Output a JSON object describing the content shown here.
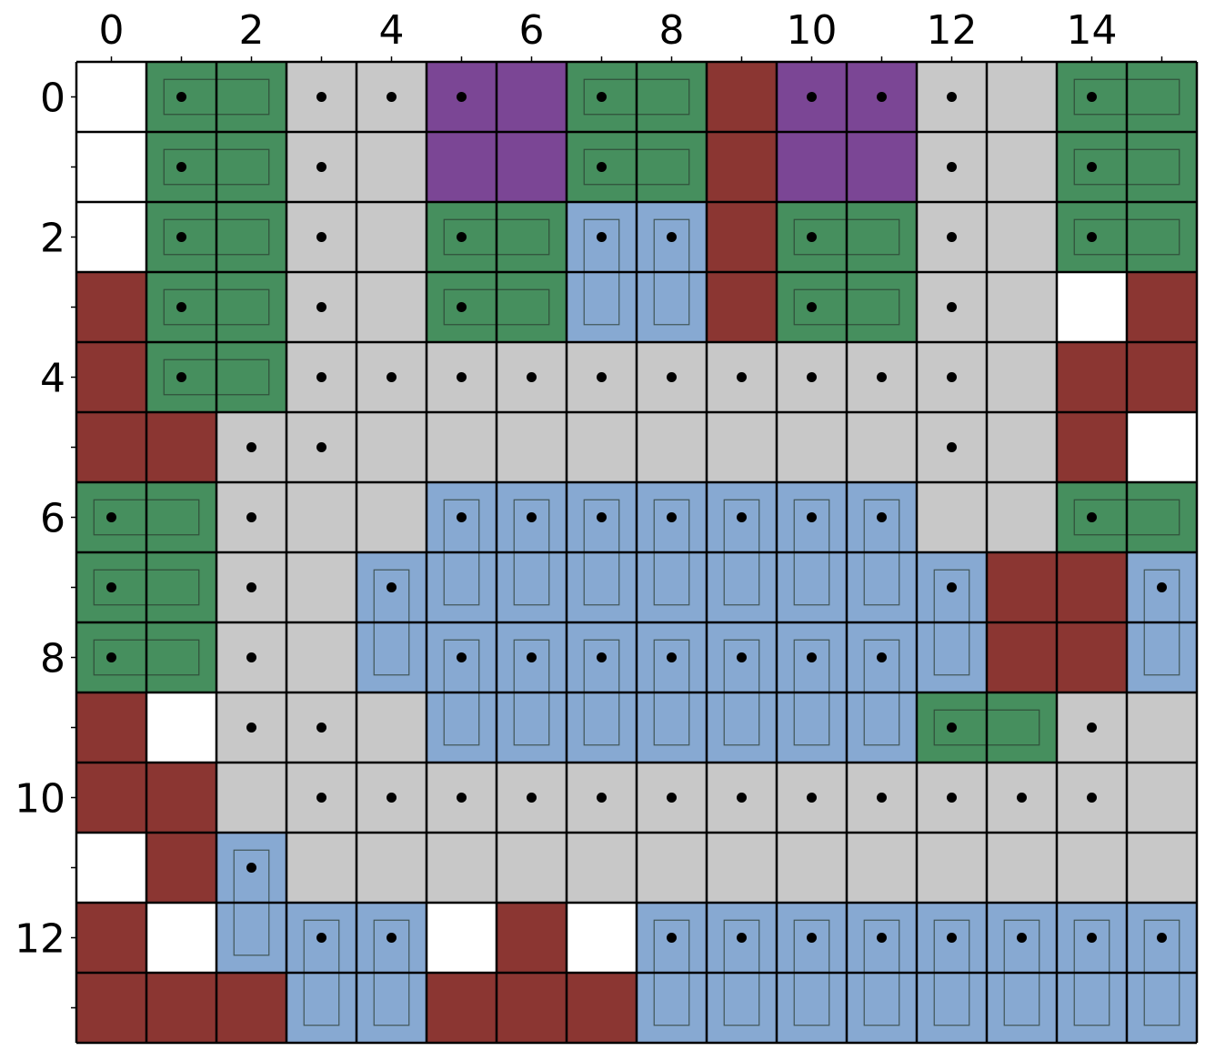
{
  "colors": {
    "empty": "#ffffff",
    "floor": "#c8c8c8",
    "wall": "#8b3632",
    "horizontal_piece": "#468f5e",
    "vertical_piece": "#87a9d2",
    "block": "#7b4695",
    "grid_line": "#000000",
    "piece_outline": "#2a3a2f",
    "dot": "#000000"
  },
  "x_ticks": [
    "0",
    "2",
    "4",
    "6",
    "8",
    "10",
    "12",
    "14"
  ],
  "y_ticks": [
    "0",
    "2",
    "4",
    "6",
    "8",
    "10",
    "12"
  ],
  "grid": {
    "cols": 16,
    "rows": 14,
    "legend": {
      "E": "empty",
      "F": "floor",
      "W": "wall",
      "H": "horizontal_piece",
      "V": "vertical_piece",
      "P": "block"
    },
    "cells": [
      "EHHFFPPHHWPPFFHH",
      "EHHFFPPHHWPPFFHH",
      "EHHFFHHVVWHHFFHH",
      "WHHFFHHVVWHHFFEW",
      "WHHFFFFFFFFFFFWW",
      "WWFFFFFFFFFFFFWE",
      "HHFFFVVVVVVVFFHH",
      "HHFFVVVVVVVVVWWV",
      "HHFFVVVVVVVVVWWV",
      "WEFFFVVVVVVVHHFF",
      "WWFFFFFFFFFFFFFF",
      "EWVFFFFFFFFFFFFF",
      "WEVVVEWEVVVVVVVV",
      "WWWVVWWWVVVVVVVV"
    ],
    "horizontal_pieces": [
      [
        0,
        1
      ],
      [
        1,
        1
      ],
      [
        2,
        1
      ],
      [
        3,
        1
      ],
      [
        4,
        1
      ],
      [
        0,
        7
      ],
      [
        1,
        7
      ],
      [
        0,
        14
      ],
      [
        1,
        14
      ],
      [
        2,
        14
      ],
      [
        6,
        14
      ],
      [
        2,
        5
      ],
      [
        3,
        5
      ],
      [
        2,
        10
      ],
      [
        3,
        10
      ],
      [
        6,
        0
      ],
      [
        7,
        0
      ],
      [
        8,
        0
      ],
      [
        9,
        12
      ]
    ],
    "vertical_pieces": [
      [
        2,
        7
      ],
      [
        2,
        8
      ],
      [
        6,
        5
      ],
      [
        6,
        6
      ],
      [
        6,
        7
      ],
      [
        6,
        8
      ],
      [
        6,
        9
      ],
      [
        6,
        10
      ],
      [
        6,
        11
      ],
      [
        8,
        5
      ],
      [
        8,
        6
      ],
      [
        8,
        7
      ],
      [
        8,
        8
      ],
      [
        8,
        9
      ],
      [
        8,
        10
      ],
      [
        8,
        11
      ],
      [
        7,
        4
      ],
      [
        7,
        12
      ],
      [
        7,
        15
      ],
      [
        11,
        2
      ],
      [
        12,
        3
      ],
      [
        12,
        4
      ],
      [
        12,
        8
      ],
      [
        12,
        9
      ],
      [
        12,
        10
      ],
      [
        12,
        11
      ],
      [
        12,
        12
      ],
      [
        12,
        13
      ],
      [
        12,
        14
      ],
      [
        12,
        15
      ]
    ],
    "dots": [
      [
        0,
        1
      ],
      [
        0,
        3
      ],
      [
        0,
        4
      ],
      [
        0,
        5
      ],
      [
        0,
        7
      ],
      [
        0,
        10
      ],
      [
        0,
        11
      ],
      [
        0,
        12
      ],
      [
        0,
        14
      ],
      [
        1,
        1
      ],
      [
        1,
        3
      ],
      [
        1,
        7
      ],
      [
        1,
        12
      ],
      [
        1,
        14
      ],
      [
        2,
        1
      ],
      [
        2,
        3
      ],
      [
        2,
        5
      ],
      [
        2,
        7
      ],
      [
        2,
        8
      ],
      [
        2,
        10
      ],
      [
        2,
        12
      ],
      [
        2,
        14
      ],
      [
        3,
        1
      ],
      [
        3,
        3
      ],
      [
        3,
        5
      ],
      [
        3,
        10
      ],
      [
        3,
        12
      ],
      [
        4,
        1
      ],
      [
        4,
        3
      ],
      [
        4,
        4
      ],
      [
        4,
        5
      ],
      [
        4,
        6
      ],
      [
        4,
        7
      ],
      [
        4,
        8
      ],
      [
        4,
        9
      ],
      [
        4,
        10
      ],
      [
        4,
        11
      ],
      [
        4,
        12
      ],
      [
        5,
        2
      ],
      [
        5,
        3
      ],
      [
        5,
        12
      ],
      [
        6,
        0
      ],
      [
        6,
        2
      ],
      [
        6,
        5
      ],
      [
        6,
        6
      ],
      [
        6,
        7
      ],
      [
        6,
        8
      ],
      [
        6,
        9
      ],
      [
        6,
        10
      ],
      [
        6,
        11
      ],
      [
        6,
        14
      ],
      [
        7,
        0
      ],
      [
        7,
        2
      ],
      [
        7,
        4
      ],
      [
        7,
        12
      ],
      [
        7,
        15
      ],
      [
        8,
        0
      ],
      [
        8,
        2
      ],
      [
        8,
        5
      ],
      [
        8,
        6
      ],
      [
        8,
        7
      ],
      [
        8,
        8
      ],
      [
        8,
        9
      ],
      [
        8,
        10
      ],
      [
        8,
        11
      ],
      [
        9,
        2
      ],
      [
        9,
        3
      ],
      [
        9,
        12
      ],
      [
        9,
        14
      ],
      [
        10,
        3
      ],
      [
        10,
        4
      ],
      [
        10,
        5
      ],
      [
        10,
        6
      ],
      [
        10,
        7
      ],
      [
        10,
        8
      ],
      [
        10,
        9
      ],
      [
        10,
        10
      ],
      [
        10,
        11
      ],
      [
        10,
        12
      ],
      [
        10,
        13
      ],
      [
        10,
        14
      ],
      [
        11,
        2
      ],
      [
        12,
        3
      ],
      [
        12,
        4
      ],
      [
        12,
        8
      ],
      [
        12,
        9
      ],
      [
        12,
        10
      ],
      [
        12,
        11
      ],
      [
        12,
        12
      ],
      [
        12,
        13
      ],
      [
        12,
        14
      ],
      [
        12,
        15
      ]
    ]
  }
}
